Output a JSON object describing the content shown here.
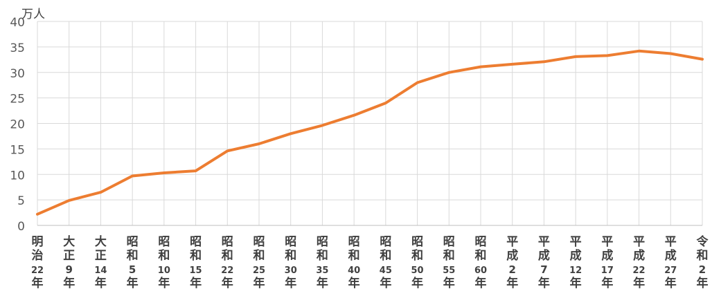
{
  "chart_data": {
    "type": "line",
    "title": "",
    "unit_label": "万人",
    "xlabel": "",
    "ylabel": "万人",
    "ylim": [
      0,
      40
    ],
    "yticks": [
      "0",
      "5",
      "10",
      "15",
      "20",
      "25",
      "30",
      "35",
      "40"
    ],
    "grid": true,
    "legend": "none",
    "line_color": "#ED7D31",
    "categories": [
      "明治22年",
      "大正9年",
      "大正14年",
      "昭和5年",
      "昭和10年",
      "昭和15年",
      "昭和22年",
      "昭和25年",
      "昭和30年",
      "昭和35年",
      "昭和40年",
      "昭和45年",
      "昭和50年",
      "昭和55年",
      "昭和60年",
      "平成2年",
      "平成7年",
      "平成12年",
      "平成17年",
      "平成22年",
      "平成27年",
      "令和2年"
    ],
    "category_label_lines": [
      [
        "明",
        "治",
        "22",
        "年"
      ],
      [
        "大",
        "正",
        "9",
        "年"
      ],
      [
        "大",
        "正",
        "14",
        "年"
      ],
      [
        "昭",
        "和",
        "5",
        "年"
      ],
      [
        "昭",
        "和",
        "10",
        "年"
      ],
      [
        "昭",
        "和",
        "15",
        "年"
      ],
      [
        "昭",
        "和",
        "22",
        "年"
      ],
      [
        "昭",
        "和",
        "25",
        "年"
      ],
      [
        "昭",
        "和",
        "30",
        "年"
      ],
      [
        "昭",
        "和",
        "35",
        "年"
      ],
      [
        "昭",
        "和",
        "40",
        "年"
      ],
      [
        "昭",
        "和",
        "45",
        "年"
      ],
      [
        "昭",
        "和",
        "50",
        "年"
      ],
      [
        "昭",
        "和",
        "55",
        "年"
      ],
      [
        "昭",
        "和",
        "60",
        "年"
      ],
      [
        "平",
        "成",
        "2",
        "年"
      ],
      [
        "平",
        "成",
        "7",
        "年"
      ],
      [
        "平",
        "成",
        "12",
        "年"
      ],
      [
        "平",
        "成",
        "17",
        "年"
      ],
      [
        "平",
        "成",
        "22",
        "年"
      ],
      [
        "平",
        "成",
        "27",
        "年"
      ],
      [
        "令",
        "和",
        "2",
        "年"
      ]
    ],
    "series": [
      {
        "values": [
          2.2,
          4.9,
          6.5,
          9.7,
          10.3,
          10.7,
          14.6,
          16.0,
          18.0,
          19.6,
          21.6,
          24.0,
          28.0,
          30.0,
          31.1,
          31.6,
          32.1,
          33.1,
          33.3,
          34.2,
          33.7,
          32.6
        ]
      }
    ]
  }
}
